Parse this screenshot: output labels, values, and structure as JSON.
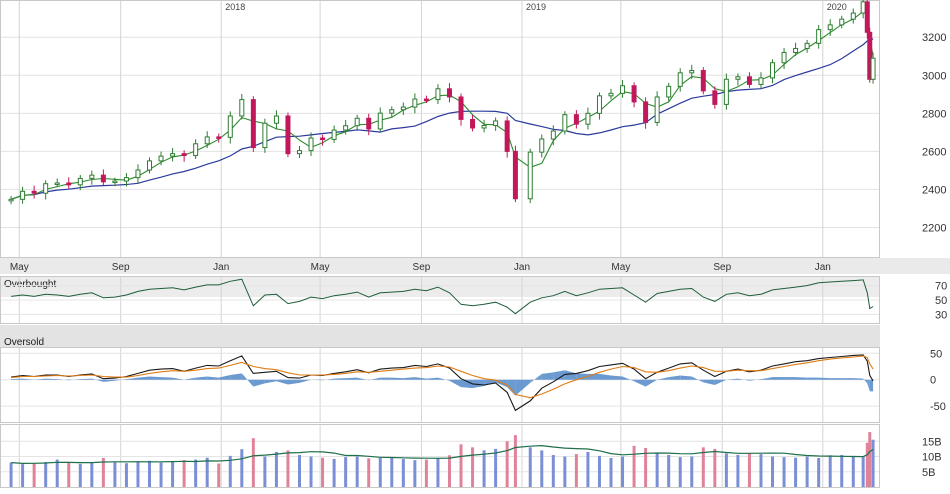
{
  "chart_data": [
    {
      "type": "candlestick",
      "panel": "price",
      "year_labels": [
        "2018",
        "2019",
        "2020"
      ],
      "y_ticks": [
        2200,
        2400,
        2600,
        2800,
        3000,
        3200
      ],
      "ylim": [
        2050,
        3380
      ],
      "grid": true,
      "series": [
        {
          "kind": "ohlc",
          "color_up": "#2e7d32",
          "color_down": "#c2185b",
          "x": [
            "2017-04-21",
            "2017-05-05",
            "2017-05-19",
            "2017-06-02",
            "2017-06-16",
            "2017-06-30",
            "2017-07-14",
            "2017-07-28",
            "2017-08-11",
            "2017-08-25",
            "2017-09-08",
            "2017-09-22",
            "2017-10-06",
            "2017-10-20",
            "2017-11-03",
            "2017-11-17",
            "2017-12-01",
            "2017-12-15",
            "2017-12-29",
            "2018-01-12",
            "2018-01-26",
            "2018-02-09",
            "2018-02-23",
            "2018-03-09",
            "2018-03-23",
            "2018-04-06",
            "2018-04-20",
            "2018-05-04",
            "2018-05-18",
            "2018-06-01",
            "2018-06-15",
            "2018-06-29",
            "2018-07-13",
            "2018-07-27",
            "2018-08-10",
            "2018-08-24",
            "2018-09-07",
            "2018-09-21",
            "2018-10-05",
            "2018-10-19",
            "2018-11-02",
            "2018-11-16",
            "2018-11-30",
            "2018-12-14",
            "2018-12-24",
            "2019-01-11",
            "2019-01-25",
            "2019-02-08",
            "2019-02-22",
            "2019-03-08",
            "2019-03-22",
            "2019-04-05",
            "2019-04-19",
            "2019-05-03",
            "2019-05-17",
            "2019-05-31",
            "2019-06-14",
            "2019-06-28",
            "2019-07-12",
            "2019-07-26",
            "2019-08-09",
            "2019-08-23",
            "2019-09-06",
            "2019-09-20",
            "2019-10-04",
            "2019-10-18",
            "2019-11-01",
            "2019-11-15",
            "2019-11-29",
            "2019-12-13",
            "2019-12-27",
            "2020-01-10",
            "2020-01-24",
            "2020-02-07",
            "2020-02-19",
            "2020-02-24",
            "2020-02-27",
            "2020-03-02"
          ],
          "close": [
            2348,
            2390,
            2380,
            2430,
            2434,
            2424,
            2458,
            2475,
            2440,
            2444,
            2462,
            2502,
            2550,
            2575,
            2588,
            2578,
            2640,
            2676,
            2674,
            2786,
            2872,
            2620,
            2748,
            2786,
            2588,
            2604,
            2670,
            2663,
            2712,
            2735,
            2774,
            2718,
            2801,
            2819,
            2833,
            2875,
            2872,
            2929,
            2886,
            2768,
            2723,
            2736,
            2760,
            2600,
            2351,
            2596,
            2665,
            2707,
            2793,
            2743,
            2800,
            2892,
            2905,
            2945,
            2860,
            2752,
            2886,
            2942,
            3013,
            3025,
            2918,
            2847,
            2979,
            2992,
            2952,
            2986,
            3066,
            3120,
            3141,
            3168,
            3240,
            3265,
            3295,
            3327,
            3386,
            3226,
            2979,
            3090
          ]
        },
        {
          "name": "",
          "kind": "ma_short",
          "color": "#2e8b2e"
        },
        {
          "name": "",
          "kind": "ma_long",
          "color": "#2b3b9c"
        }
      ]
    },
    {
      "type": "line",
      "panel": "rsi",
      "labels": {
        "overbought": "Overbought",
        "oversold": "Oversold"
      },
      "y_ticks": [
        30,
        50,
        70
      ],
      "ylim": [
        18,
        82
      ],
      "values": [
        55,
        57,
        55,
        58,
        57,
        55,
        58,
        60,
        53,
        54,
        57,
        62,
        65,
        66,
        67,
        64,
        68,
        71,
        71,
        76,
        79,
        42,
        57,
        58,
        45,
        48,
        54,
        52,
        56,
        58,
        61,
        54,
        60,
        61,
        62,
        65,
        63,
        68,
        60,
        44,
        42,
        44,
        47,
        40,
        31,
        47,
        53,
        56,
        62,
        56,
        60,
        65,
        66,
        67,
        57,
        47,
        59,
        62,
        65,
        66,
        54,
        48,
        58,
        60,
        56,
        58,
        64,
        66,
        68,
        70,
        74,
        75,
        76,
        77,
        78,
        60,
        38,
        41
      ]
    },
    {
      "type": "line",
      "panel": "macd",
      "y_ticks": [
        50,
        0,
        -50
      ],
      "ylim": [
        -80,
        60
      ],
      "series": [
        {
          "name": "",
          "color": "#1a1a1a",
          "values": [
            5,
            8,
            6,
            9,
            9,
            6,
            9,
            11,
            2,
            3,
            6,
            12,
            18,
            20,
            21,
            16,
            22,
            27,
            26,
            36,
            45,
            12,
            14,
            16,
            4,
            3,
            9,
            8,
            12,
            15,
            19,
            13,
            20,
            22,
            23,
            27,
            25,
            30,
            22,
            2,
            -8,
            -10,
            -6,
            -24,
            -58,
            -40,
            -16,
            -4,
            10,
            12,
            17,
            25,
            28,
            31,
            20,
            2,
            14,
            22,
            30,
            32,
            18,
            6,
            16,
            20,
            15,
            18,
            26,
            30,
            34,
            36,
            40,
            42,
            44,
            46,
            47,
            35,
            8,
            -2
          ]
        },
        {
          "name": "",
          "color": "#e07b12",
          "values": [
            4,
            6,
            6,
            7,
            8,
            7,
            8,
            9,
            6,
            5,
            5,
            8,
            12,
            15,
            17,
            16,
            18,
            21,
            22,
            27,
            33,
            25,
            21,
            19,
            13,
            9,
            9,
            9,
            10,
            12,
            15,
            14,
            16,
            18,
            20,
            22,
            23,
            26,
            24,
            16,
            8,
            2,
            -1,
            -10,
            -28,
            -34,
            -27,
            -18,
            -8,
            0,
            6,
            14,
            20,
            25,
            23,
            15,
            14,
            17,
            22,
            26,
            23,
            16,
            16,
            18,
            17,
            17,
            21,
            25,
            29,
            32,
            36,
            39,
            41,
            43,
            45,
            42,
            30,
            20
          ]
        }
      ]
    },
    {
      "type": "bar",
      "panel": "volume",
      "y_ticks": [
        "15B",
        "10B",
        "5B"
      ],
      "ylim": [
        0,
        20
      ],
      "values": [
        8,
        7.5,
        7.8,
        8.2,
        9,
        7.9,
        7.6,
        8,
        9.5,
        8.1,
        7.8,
        8.4,
        8.6,
        8,
        8.2,
        8.8,
        9,
        9.6,
        7.7,
        10.2,
        12.4,
        16,
        10,
        11.5,
        12,
        10.5,
        10,
        9.6,
        9.2,
        9.8,
        10,
        9.4,
        9.5,
        9.8,
        9.2,
        8.8,
        9,
        9.6,
        10.4,
        14,
        13,
        12,
        12.5,
        15,
        17,
        13,
        12,
        10.5,
        10,
        10.8,
        11.5,
        10.2,
        9.5,
        10,
        13.5,
        12.8,
        11,
        10.5,
        9.8,
        10,
        13,
        12.5,
        11,
        10.5,
        11,
        10.8,
        10,
        9.8,
        9.6,
        10,
        9.5,
        10.4,
        10.5,
        10.2,
        9.8,
        14.5,
        18,
        15.5
      ],
      "up_color": "#7a8fd6",
      "down_color": "#e0839a",
      "avg_color": "#1f6f4a"
    }
  ],
  "x_axis": {
    "month_labels": [
      "May",
      "Sep",
      "Jan",
      "May",
      "Sep",
      "Jan",
      "May",
      "Sep",
      "Jan"
    ]
  }
}
